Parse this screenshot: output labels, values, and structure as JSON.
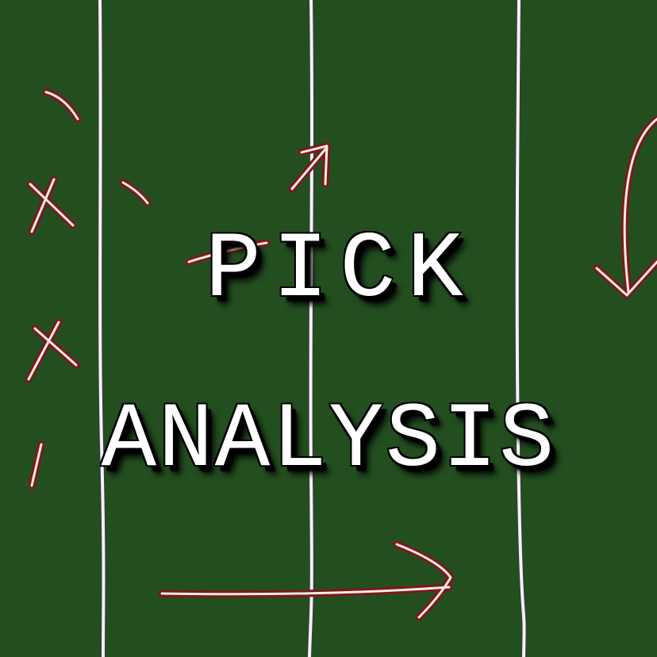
{
  "graphic": {
    "title_line_1": "PICK",
    "title_line_2": "ANALYSIS",
    "colors": {
      "field": "#234f20",
      "yard_line": "#f2f2f2",
      "play_marking": "#7a1a1a",
      "title_text": "#ffffff"
    },
    "icons": [
      "x-mark",
      "arrow",
      "route-line",
      "yard-line"
    ]
  }
}
